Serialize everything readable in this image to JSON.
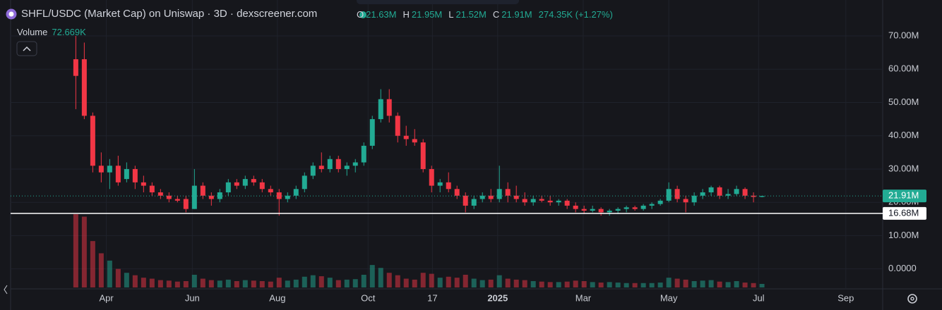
{
  "header": {
    "title": "SHFL/USDC (Market Cap) on Uniswap · 3D · dexscreener.com",
    "ohlc": [
      {
        "key": "O",
        "value": "21.63M"
      },
      {
        "key": "H",
        "value": "21.95M"
      },
      {
        "key": "L",
        "value": "21.52M"
      },
      {
        "key": "C",
        "value": "21.91M"
      }
    ],
    "change": "274.35K (+1.27%)",
    "volume_label": "Volume",
    "volume_value": "72.669K"
  },
  "chart_data": {
    "type": "candlestick",
    "up_color": "#22ab94",
    "down_color": "#f23645",
    "ohlc": [
      [
        63,
        70,
        48,
        58
      ],
      [
        63,
        68,
        45,
        46
      ],
      [
        46,
        47,
        29,
        31
      ],
      [
        31,
        35,
        26,
        29
      ],
      [
        29,
        33,
        24,
        31
      ],
      [
        31,
        34,
        25,
        26
      ],
      [
        27,
        32,
        26,
        30
      ],
      [
        30,
        31,
        24,
        26
      ],
      [
        26,
        28,
        23,
        25
      ],
      [
        25,
        26,
        22,
        23
      ],
      [
        23,
        24,
        21,
        22
      ],
      [
        22,
        23,
        20,
        21
      ],
      [
        21,
        22,
        20,
        20.5
      ],
      [
        21,
        22,
        17,
        18
      ],
      [
        18,
        30,
        18,
        25
      ],
      [
        25,
        26,
        21,
        22
      ],
      [
        22,
        23,
        19,
        21
      ],
      [
        21,
        24,
        20,
        23
      ],
      [
        23,
        27,
        22,
        26
      ],
      [
        26,
        27,
        24,
        25
      ],
      [
        25,
        28,
        24,
        27
      ],
      [
        27,
        28,
        25,
        26
      ],
      [
        26,
        27,
        23,
        24
      ],
      [
        24,
        25,
        22,
        23
      ],
      [
        23,
        24,
        16,
        21
      ],
      [
        21,
        23,
        20,
        22
      ],
      [
        22,
        25,
        21,
        24
      ],
      [
        24,
        29,
        23,
        28
      ],
      [
        28,
        32,
        27,
        31
      ],
      [
        31,
        35,
        29,
        30
      ],
      [
        30,
        34,
        29,
        33
      ],
      [
        33,
        34,
        29,
        30
      ],
      [
        30,
        32,
        28,
        31
      ],
      [
        31,
        33,
        29,
        32
      ],
      [
        32,
        38,
        31,
        37
      ],
      [
        37,
        46,
        36,
        45
      ],
      [
        45,
        54,
        44,
        51
      ],
      [
        51,
        54,
        44,
        46
      ],
      [
        46,
        47,
        38,
        40
      ],
      [
        40,
        43,
        37,
        39
      ],
      [
        39,
        42,
        37,
        38
      ],
      [
        38,
        39,
        29,
        30
      ],
      [
        30,
        31,
        23,
        25
      ],
      [
        25,
        27,
        23,
        26
      ],
      [
        26,
        29,
        23,
        24
      ],
      [
        24,
        25,
        21,
        22
      ],
      [
        22,
        23,
        17,
        19
      ],
      [
        19,
        22,
        18,
        21
      ],
      [
        21,
        23,
        20,
        22
      ],
      [
        22,
        24,
        20,
        21
      ],
      [
        21,
        31,
        20,
        24
      ],
      [
        24,
        26,
        20,
        22
      ],
      [
        22,
        25,
        20,
        21
      ],
      [
        21,
        23,
        19,
        20
      ],
      [
        20,
        22,
        19,
        21
      ],
      [
        21,
        22,
        20,
        20.5
      ],
      [
        20.5,
        22,
        19,
        20
      ],
      [
        20,
        21,
        19,
        20.5
      ],
      [
        20.5,
        21,
        18,
        19
      ],
      [
        19,
        20,
        17,
        18
      ],
      [
        18,
        19,
        16.5,
        17.5
      ],
      [
        17.5,
        19,
        17,
        18
      ],
      [
        18,
        18.5,
        16,
        17
      ],
      [
        17,
        18,
        16,
        17.5
      ],
      [
        17.5,
        18.5,
        16.5,
        18
      ],
      [
        18,
        19,
        17,
        18.5
      ],
      [
        18.5,
        19,
        17.5,
        18
      ],
      [
        18,
        19.5,
        17.5,
        19
      ],
      [
        19,
        20,
        18,
        19.5
      ],
      [
        19.5,
        21,
        19,
        20.5
      ],
      [
        20.5,
        26,
        20,
        24
      ],
      [
        24,
        25,
        20,
        21
      ],
      [
        21,
        22,
        17,
        20
      ],
      [
        20,
        23,
        19,
        22
      ],
      [
        22,
        24,
        21,
        23
      ],
      [
        23,
        25,
        22,
        24.5
      ],
      [
        24.5,
        25,
        21,
        22
      ],
      [
        22,
        24,
        21,
        22.5
      ],
      [
        22.5,
        25,
        22,
        24
      ],
      [
        24,
        24.5,
        21,
        22
      ],
      [
        22,
        23,
        20,
        21.63
      ],
      [
        21.63,
        21.95,
        21.52,
        21.91
      ]
    ],
    "volume": [
      1500,
      1450,
      950,
      700,
      550,
      380,
      300,
      250,
      200,
      180,
      150,
      140,
      120,
      130,
      260,
      180,
      150,
      140,
      160,
      130,
      150,
      140,
      130,
      120,
      200,
      140,
      160,
      220,
      250,
      230,
      200,
      150,
      160,
      170,
      260,
      460,
      400,
      300,
      250,
      180,
      160,
      300,
      280,
      200,
      220,
      200,
      260,
      180,
      150,
      160,
      250,
      180,
      160,
      150,
      130,
      120,
      110,
      110,
      120,
      140,
      130,
      110,
      100,
      110,
      100,
      90,
      90,
      90,
      90,
      100,
      200,
      180,
      160,
      130,
      140,
      150,
      120,
      110,
      130,
      100,
      90,
      72.669
    ],
    "xlim": [
      -7.7,
      95.25
    ],
    "xticks": [
      {
        "value": 3.6,
        "label": "Apr"
      },
      {
        "value": 13.75,
        "label": "Jun"
      },
      {
        "value": 23.8,
        "label": "Aug"
      },
      {
        "value": 34.5,
        "label": "Oct"
      },
      {
        "value": 42.1,
        "label": "17"
      },
      {
        "value": 49.8,
        "label": "2025"
      },
      {
        "value": 59.9,
        "label": "Mar"
      },
      {
        "value": 70,
        "label": "May"
      },
      {
        "value": 80.6,
        "label": "Jul"
      },
      {
        "value": 90.9,
        "label": "Sep"
      }
    ],
    "ylim": [
      -6,
      80.8
    ],
    "yticks": [
      {
        "value": 0,
        "label": "0.0000"
      },
      {
        "value": 10,
        "label": "10.00M"
      },
      {
        "value": 20,
        "label": "20.00M"
      },
      {
        "value": 30,
        "label": "30.00M"
      },
      {
        "value": 40,
        "label": "40.00M"
      },
      {
        "value": 50,
        "label": "50.00M"
      },
      {
        "value": 60,
        "label": "60.00M"
      },
      {
        "value": 70,
        "label": "70.00M"
      }
    ],
    "grid": true,
    "last_price": {
      "value": 21.91,
      "label": "21.91M"
    },
    "price_line": {
      "value": 16.68,
      "label": "16.68M"
    }
  }
}
